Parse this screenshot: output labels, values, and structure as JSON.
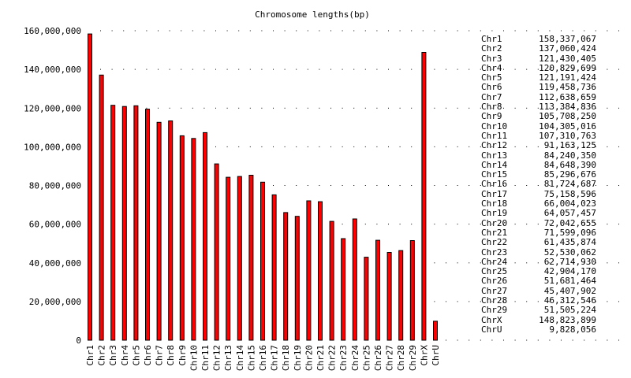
{
  "chart_data": {
    "type": "bar",
    "title": "Chromosome lengths(bp)",
    "xlabel": "",
    "ylabel": "",
    "ylim": [
      0,
      160000000
    ],
    "yticks": [
      "0",
      "20,000,000",
      "40,000,000",
      "60,000,000",
      "80,000,000",
      "100,000,000",
      "120,000,000",
      "140,000,000",
      "160,000,000"
    ],
    "categories": [
      "Chr1",
      "Chr2",
      "Chr3",
      "Chr4",
      "Chr5",
      "Chr6",
      "Chr7",
      "Chr8",
      "Chr9",
      "Chr10",
      "Chr11",
      "Chr12",
      "Chr13",
      "Chr14",
      "Chr15",
      "Chr16",
      "Chr17",
      "Chr18",
      "Chr19",
      "Chr20",
      "Chr21",
      "Chr22",
      "Chr23",
      "Chr24",
      "Chr25",
      "Chr26",
      "Chr27",
      "Chr28",
      "Chr29",
      "ChrX",
      "ChrU"
    ],
    "values": [
      158337067,
      137060424,
      121430405,
      120829699,
      121191424,
      119458736,
      112638659,
      113384836,
      105708250,
      104305016,
      107310763,
      91163125,
      84240350,
      84648390,
      85296676,
      81724687,
      75158596,
      66004023,
      64057457,
      72042655,
      71599096,
      61435874,
      52530062,
      62714930,
      42904170,
      51681464,
      45407902,
      46312546,
      51505224,
      148823899,
      9828056
    ],
    "value_labels": [
      "158,337,067",
      "137,060,424",
      "121,430,405",
      "120,829,699",
      "121,191,424",
      "119,458,736",
      "112,638,659",
      "113,384,836",
      "105,708,250",
      "104,305,016",
      "107,310,763",
      "91,163,125",
      "84,240,350",
      "84,648,390",
      "85,296,676",
      "81,724,687",
      "75,158,596",
      "66,004,023",
      "64,057,457",
      "72,042,655",
      "71,599,096",
      "61,435,874",
      "52,530,062",
      "62,714,930",
      "42,904,170",
      "51,681,464",
      "45,407,902",
      "46,312,546",
      "51,505,224",
      "148,823,899",
      "9,828,056"
    ],
    "colors": {
      "bar_fill": "#ff0000",
      "bar_stroke": "#000000",
      "grid": "#000000"
    },
    "grid": true,
    "legend": "right"
  }
}
